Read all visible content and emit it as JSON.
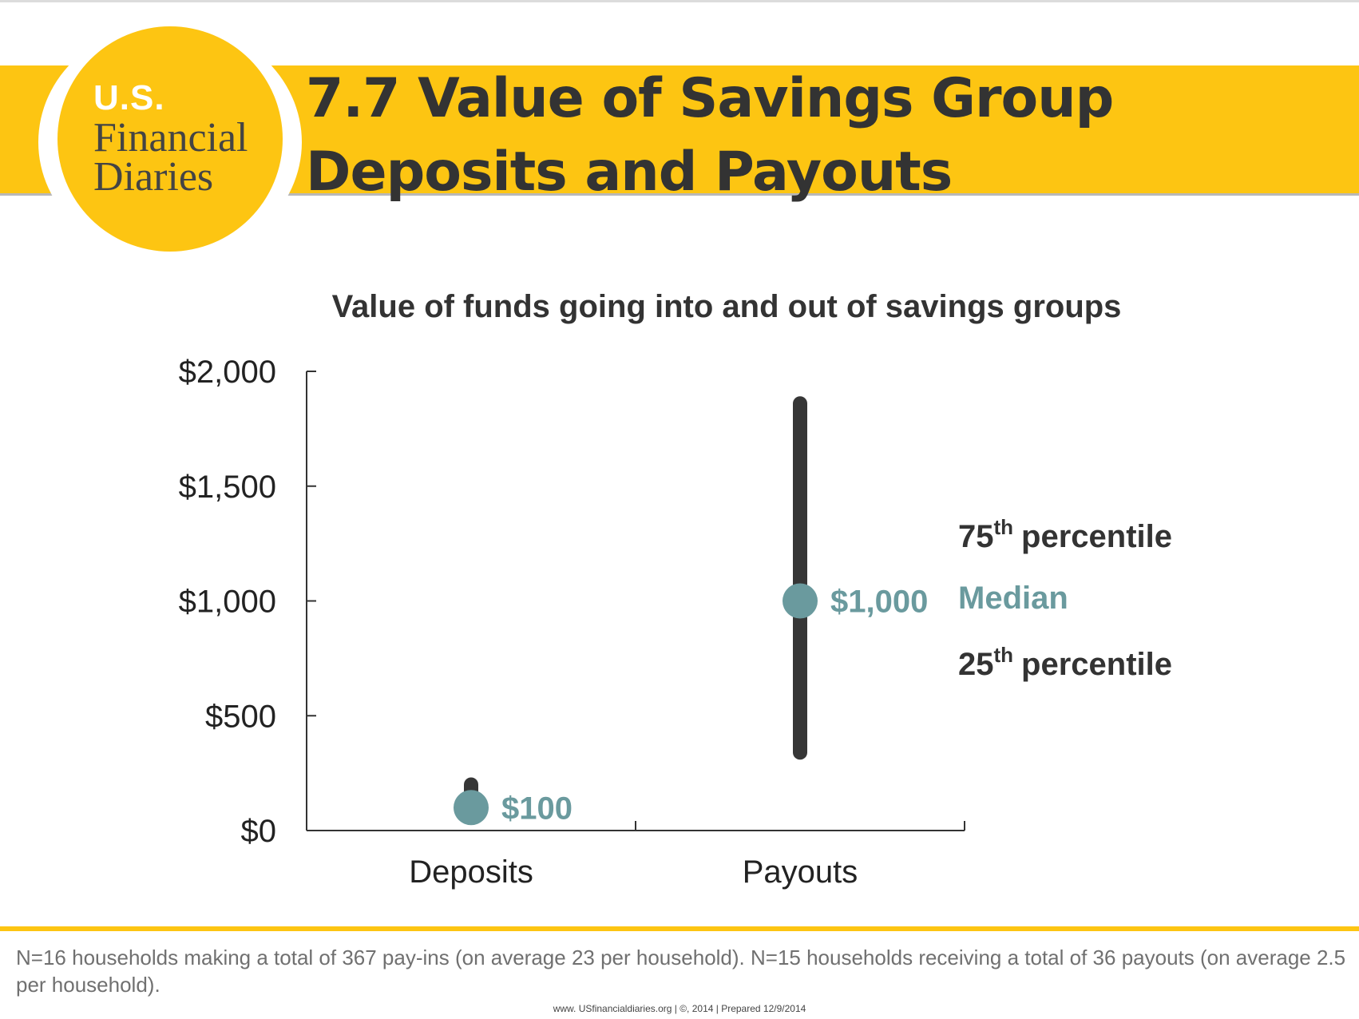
{
  "header": {
    "logo": {
      "line1": "U.S.",
      "line2": "Financial",
      "line3": "Diaries"
    },
    "title": "7.7 Value of Savings Group Deposits and Payouts"
  },
  "colors": {
    "banner": "#fdc512",
    "median_marker": "#6a9a9e",
    "range_bar": "#363636",
    "text_dark": "#333333",
    "footer_text": "#707070"
  },
  "chart_data": {
    "type": "range",
    "title": "Value of funds going into and out of savings groups",
    "categories": [
      "Deposits",
      "Payouts"
    ],
    "series": [
      {
        "name": "25th percentile",
        "values": [
          100,
          340
        ]
      },
      {
        "name": "Median",
        "values": [
          100,
          1000
        ]
      },
      {
        "name": "75th percentile",
        "values": [
          200,
          1860
        ]
      }
    ],
    "median_labels": [
      "$100",
      "$1,000"
    ],
    "y_ticks": [
      {
        "value": 0,
        "label": "$0"
      },
      {
        "value": 500,
        "label": "$500"
      },
      {
        "value": 1000,
        "label": "$1,000"
      },
      {
        "value": 1500,
        "label": "$1,500"
      },
      {
        "value": 2000,
        "label": "$2,000"
      }
    ],
    "ylim": [
      0,
      2000
    ],
    "grid": false,
    "legend": [
      {
        "num": "75",
        "sup": "th",
        "text": "percentile"
      },
      {
        "text": "Median"
      },
      {
        "num": "25",
        "sup": "th",
        "text": "percentile"
      }
    ]
  },
  "footer": {
    "note": "N=16 households making a total of 367 pay-ins (on average 23 per household). N=15 households receiving a total of 36 payouts (on average 2.5 per household).",
    "credit": "www. USfinancialdiaries.org  |  ©, 2014 | Prepared 12/9/2014"
  }
}
